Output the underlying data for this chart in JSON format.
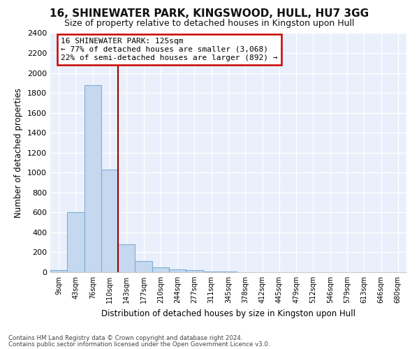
{
  "title1": "16, SHINEWATER PARK, KINGSWOOD, HULL, HU7 3GG",
  "title2": "Size of property relative to detached houses in Kingston upon Hull",
  "xlabel": "Distribution of detached houses by size in Kingston upon Hull",
  "ylabel": "Number of detached properties",
  "bar_labels": [
    "9sqm",
    "43sqm",
    "76sqm",
    "110sqm",
    "143sqm",
    "177sqm",
    "210sqm",
    "244sqm",
    "277sqm",
    "311sqm",
    "345sqm",
    "378sqm",
    "412sqm",
    "445sqm",
    "479sqm",
    "512sqm",
    "546sqm",
    "579sqm",
    "613sqm",
    "646sqm",
    "680sqm"
  ],
  "bar_values": [
    20,
    600,
    1880,
    1030,
    280,
    115,
    48,
    30,
    20,
    10,
    5,
    2,
    2,
    0,
    0,
    0,
    0,
    0,
    0,
    0,
    0
  ],
  "bar_color": "#c5d8f0",
  "bar_edge_color": "#7aafd4",
  "vline_color": "#990000",
  "annotation_title": "16 SHINEWATER PARK: 125sqm",
  "annotation_line1": "← 77% of detached houses are smaller (3,068)",
  "annotation_line2": "22% of semi-detached houses are larger (892) →",
  "annotation_box_color": "#cc0000",
  "ylim": [
    0,
    2400
  ],
  "yticks": [
    0,
    200,
    400,
    600,
    800,
    1000,
    1200,
    1400,
    1600,
    1800,
    2000,
    2200,
    2400
  ],
  "footer1": "Contains HM Land Registry data © Crown copyright and database right 2024.",
  "footer2": "Contains public sector information licensed under the Open Government Licence v3.0.",
  "plot_bg_color": "#eaf0fb",
  "grid_color": "#ffffff",
  "title1_fontsize": 11,
  "title2_fontsize": 9
}
